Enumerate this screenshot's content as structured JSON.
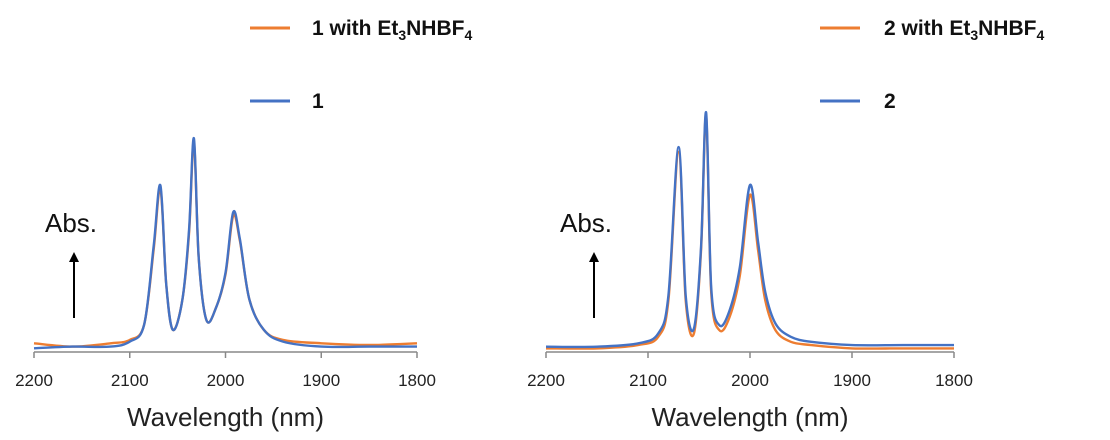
{
  "chart_data": [
    {
      "type": "line",
      "xlabel": "Wavelength (nm)",
      "ylabel": "Abs.",
      "xlim": [
        2200,
        1800
      ],
      "x_reversed": true,
      "xticks": [
        "2200",
        "2100",
        "2000",
        "1900",
        "1800"
      ],
      "y_axis_visible": false,
      "grid": false,
      "legend_position": "top-right",
      "series": [
        {
          "name": "1 with Et3NHBF4",
          "legend_text": {
            "pre": "1 with Et",
            "sub1": "3",
            "mid": "NHBF",
            "sub2": "4"
          },
          "color": "#ED7D31",
          "x": [
            2200,
            2160,
            2120,
            2100,
            2085,
            2075,
            2068,
            2062,
            2055,
            2045,
            2038,
            2033,
            2028,
            2020,
            2010,
            2000,
            1992,
            1985,
            1975,
            1960,
            1940,
            1900,
            1850,
            1800
          ],
          "y": [
            0.04,
            0.02,
            0.04,
            0.06,
            0.15,
            0.6,
            0.96,
            0.4,
            0.12,
            0.3,
            0.7,
            1.24,
            0.55,
            0.18,
            0.25,
            0.45,
            0.8,
            0.65,
            0.3,
            0.12,
            0.06,
            0.04,
            0.03,
            0.04
          ]
        },
        {
          "name": "1",
          "legend_text": {
            "pre": "1",
            "sub1": "",
            "mid": "",
            "sub2": ""
          },
          "color": "#4472C4",
          "x": [
            2200,
            2160,
            2120,
            2100,
            2085,
            2075,
            2068,
            2062,
            2055,
            2045,
            2038,
            2033,
            2028,
            2020,
            2010,
            2000,
            1992,
            1985,
            1975,
            1960,
            1940,
            1900,
            1850,
            1800
          ],
          "y": [
            0.01,
            0.02,
            0.02,
            0.05,
            0.15,
            0.62,
            0.98,
            0.4,
            0.12,
            0.3,
            0.72,
            1.26,
            0.55,
            0.18,
            0.25,
            0.46,
            0.82,
            0.66,
            0.3,
            0.12,
            0.05,
            0.02,
            0.02,
            0.02
          ]
        }
      ]
    },
    {
      "type": "line",
      "xlabel": "Wavelength (nm)",
      "ylabel": "Abs.",
      "xlim": [
        2200,
        1800
      ],
      "x_reversed": true,
      "xticks": [
        "2200",
        "2100",
        "2000",
        "1900",
        "1800"
      ],
      "y_axis_visible": false,
      "grid": false,
      "legend_position": "top-right",
      "series": [
        {
          "name": "2 with Et3NHBF4",
          "legend_text": {
            "pre": "2 with Et",
            "sub1": "3",
            "mid": "NHBF",
            "sub2": "4"
          },
          "color": "#ED7D31",
          "x": [
            2200,
            2150,
            2110,
            2090,
            2080,
            2070,
            2063,
            2055,
            2048,
            2043,
            2038,
            2030,
            2020,
            2010,
            2000,
            1992,
            1985,
            1975,
            1960,
            1940,
            1900,
            1850,
            1800
          ],
          "y": [
            0.01,
            0.01,
            0.03,
            0.08,
            0.3,
            1.2,
            0.3,
            0.1,
            0.6,
            1.42,
            0.35,
            0.12,
            0.2,
            0.45,
            0.94,
            0.6,
            0.3,
            0.12,
            0.05,
            0.03,
            0.01,
            0.01,
            0.01
          ]
        },
        {
          "name": "2",
          "legend_text": {
            "pre": "2",
            "sub1": "",
            "mid": "",
            "sub2": ""
          },
          "color": "#4472C4",
          "x": [
            2200,
            2150,
            2110,
            2090,
            2080,
            2070,
            2063,
            2055,
            2048,
            2043,
            2038,
            2030,
            2020,
            2010,
            2000,
            1992,
            1985,
            1975,
            1960,
            1940,
            1900,
            1850,
            1800
          ],
          "y": [
            0.02,
            0.02,
            0.04,
            0.1,
            0.33,
            1.23,
            0.33,
            0.13,
            0.62,
            1.44,
            0.38,
            0.15,
            0.24,
            0.5,
            1.0,
            0.65,
            0.35,
            0.16,
            0.08,
            0.05,
            0.03,
            0.03,
            0.03
          ]
        }
      ]
    }
  ]
}
